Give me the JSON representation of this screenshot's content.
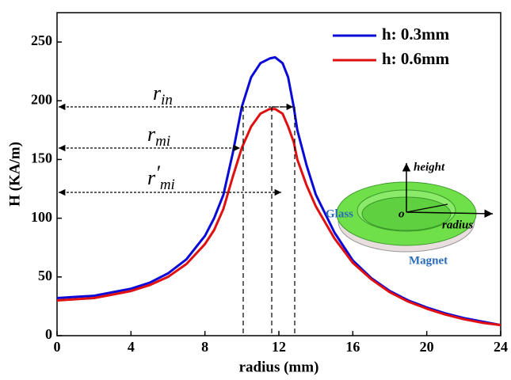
{
  "chart_data": {
    "type": "line",
    "x_label": "radius (mm)",
    "y_label": "H (KA/m)",
    "xlim": [
      0,
      24
    ],
    "xticks": [
      0,
      4,
      8,
      12,
      16,
      20,
      24
    ],
    "ylim": [
      0,
      275
    ],
    "yticks": [
      0,
      50,
      100,
      150,
      200,
      250
    ],
    "x": [
      0,
      1,
      2,
      3,
      4,
      5,
      6,
      7,
      8,
      8.5,
      9,
      9.5,
      10,
      10.5,
      11,
      11.5,
      11.8,
      12.2,
      12.5,
      12.8,
      13,
      13.5,
      14,
      15,
      16,
      17,
      18,
      19,
      20,
      21,
      22,
      23,
      24
    ],
    "series": [
      {
        "name": "h: 0.3mm",
        "color": "#0a0ad8",
        "values": [
          32,
          33,
          34,
          37,
          40,
          45,
          53,
          65,
          85,
          100,
          120,
          155,
          195,
          220,
          232,
          236,
          237,
          232,
          220,
          195,
          175,
          145,
          120,
          88,
          64,
          49,
          38,
          30,
          24,
          19,
          15,
          12,
          9
        ]
      },
      {
        "name": "h: 0.6mm",
        "color": "#e01010",
        "values": [
          30,
          31,
          32,
          35,
          38,
          43,
          50,
          61,
          78,
          90,
          108,
          135,
          160,
          178,
          189,
          193,
          193,
          189,
          178,
          165,
          150,
          128,
          110,
          83,
          62,
          48,
          37,
          29,
          23,
          18,
          14,
          11,
          9
        ]
      }
    ],
    "legend_position": "upper right",
    "annotations": [
      {
        "base": "r",
        "sub": "in",
        "prime": ""
      },
      {
        "base": "r",
        "sub": "mi",
        "prime": ""
      },
      {
        "base": "r",
        "sub": "mi",
        "prime": "′"
      }
    ],
    "inset_labels": {
      "height": "height",
      "origin": "o",
      "radius": "radius",
      "glass": "Glass",
      "magnet": "Magnet"
    }
  }
}
